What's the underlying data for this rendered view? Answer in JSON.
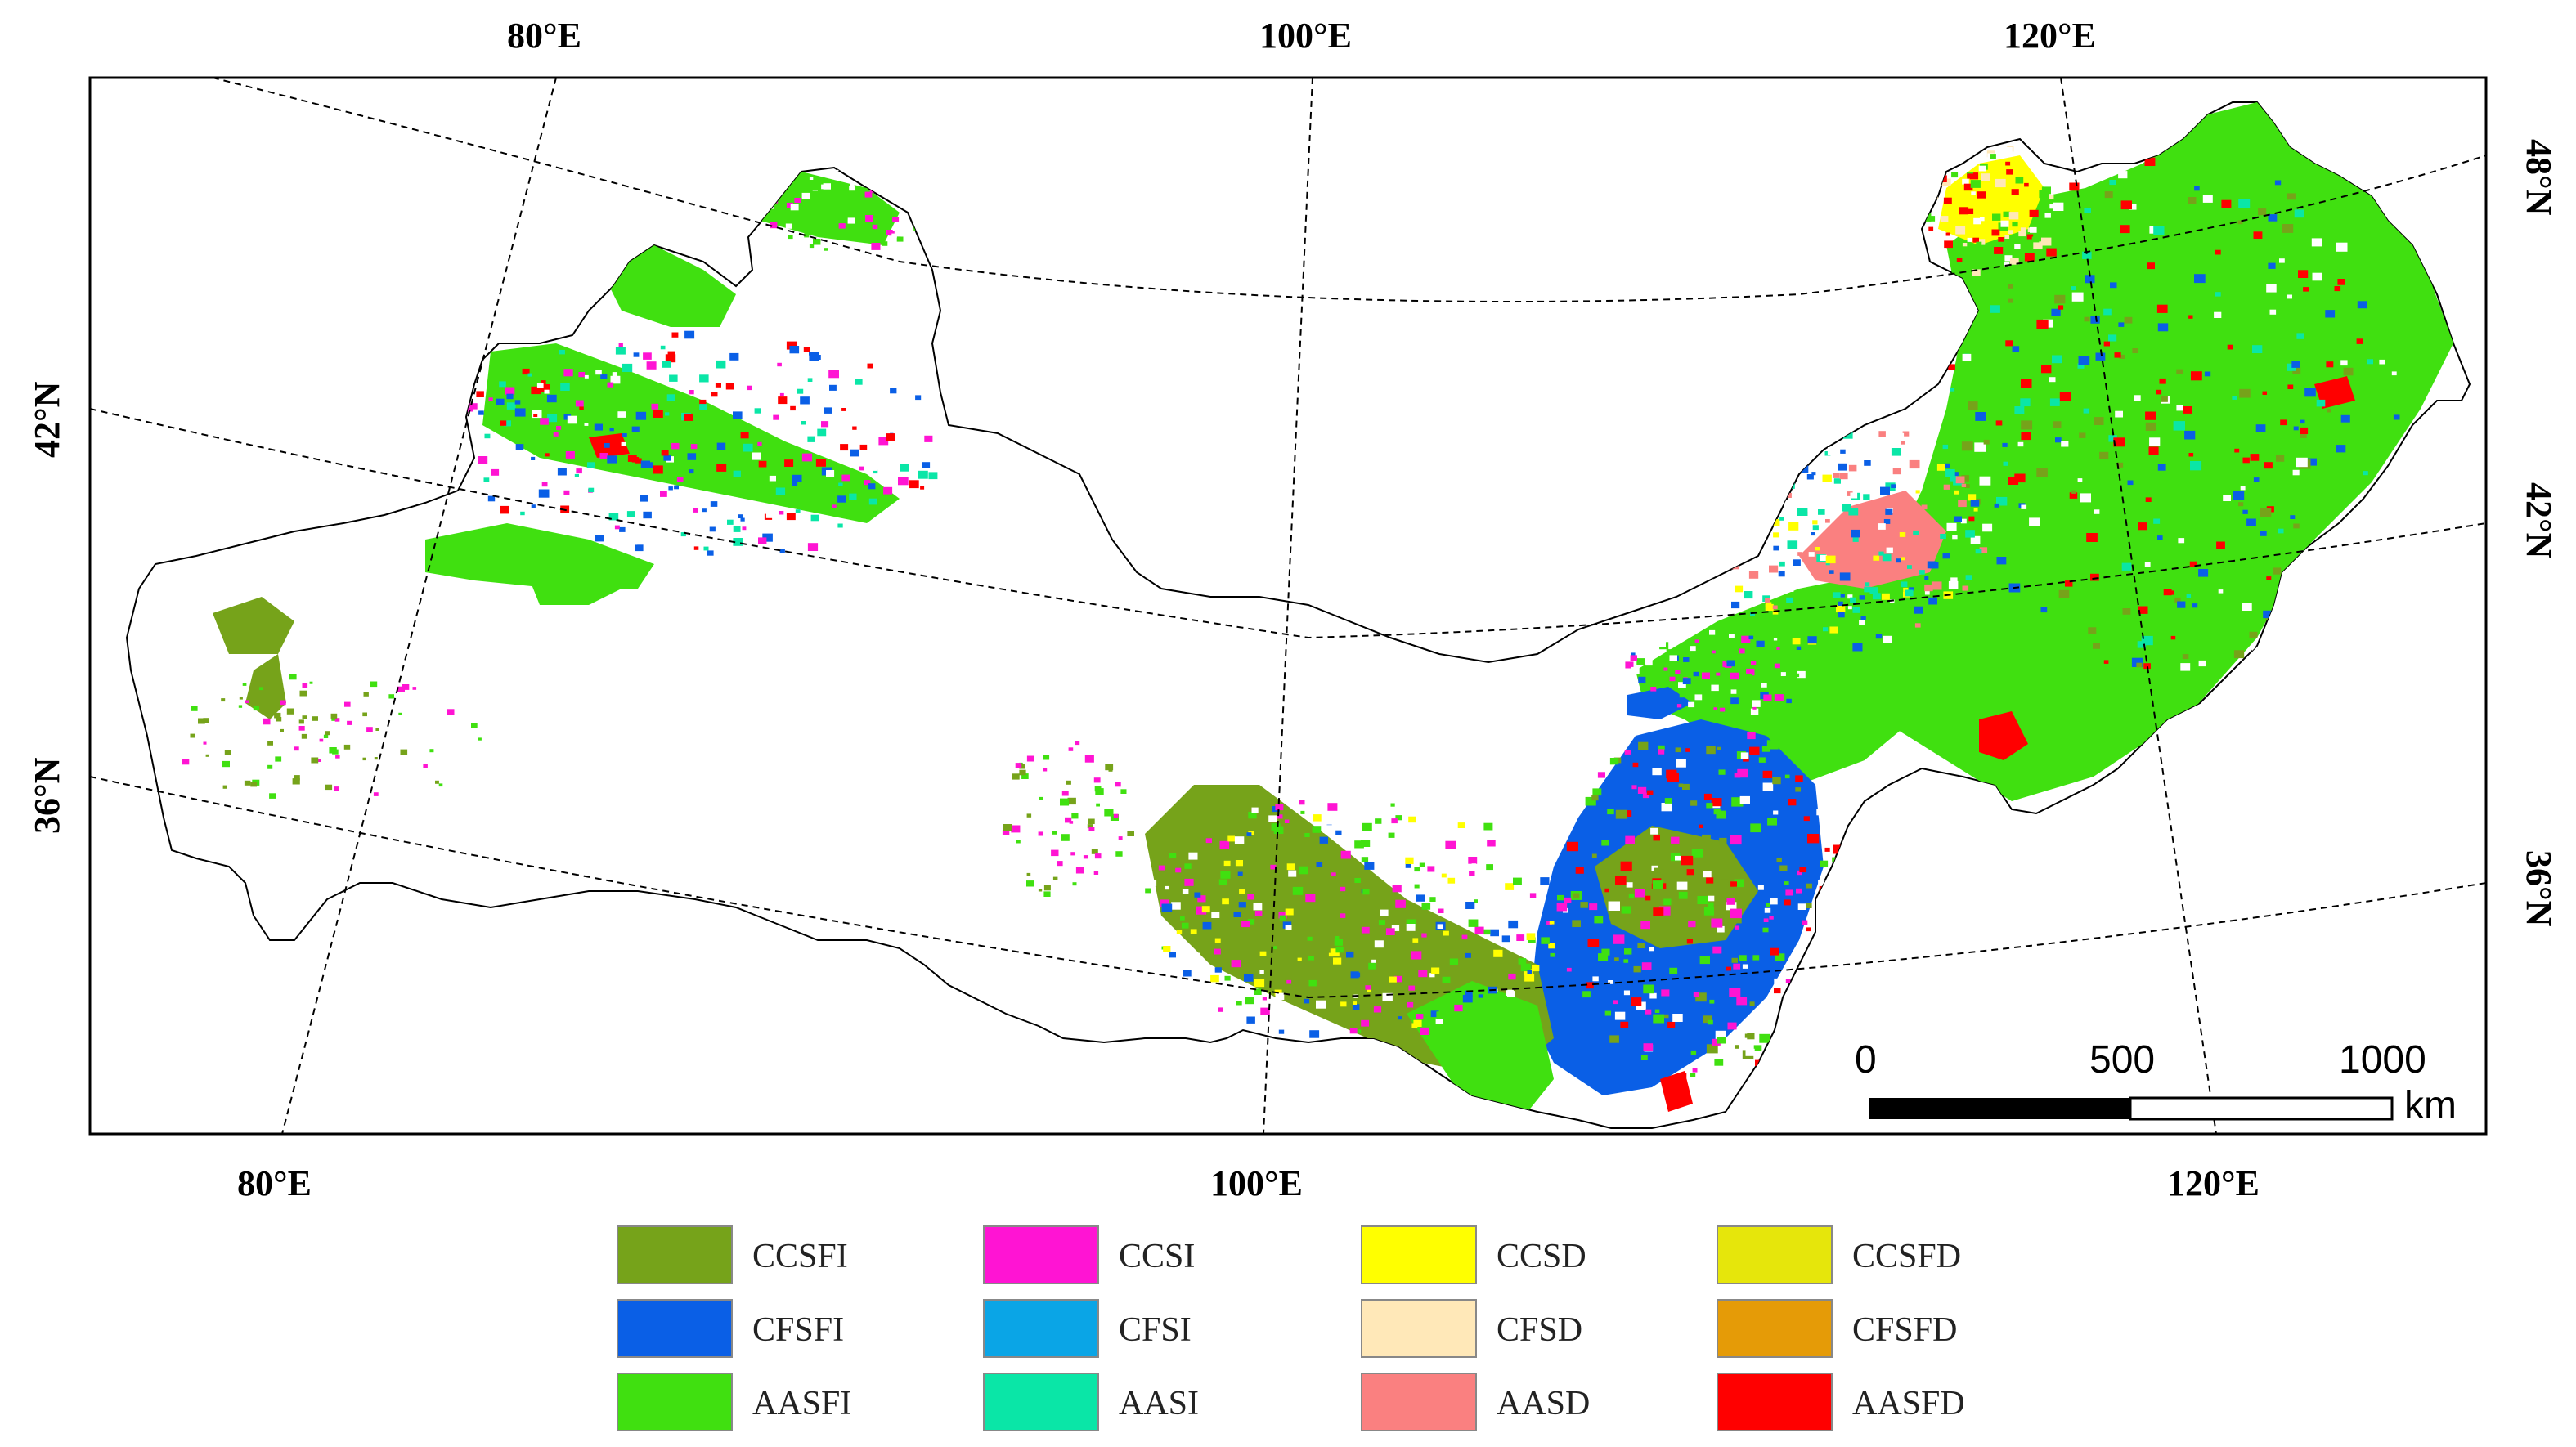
{
  "map": {
    "graticule_labels": {
      "top": [
        "80°E",
        "100°E",
        "120°E"
      ],
      "bottom": [
        "80°E",
        "100°E",
        "120°E"
      ],
      "left": [
        "42°N",
        "36°N"
      ],
      "right": [
        "48°N",
        "42°N",
        "36°N"
      ]
    },
    "scale_bar": {
      "ticks": [
        "0",
        "500",
        "1000"
      ],
      "unit": "km"
    },
    "legend": [
      {
        "label": "CCSFI",
        "color": "#76a31a"
      },
      {
        "label": "CCSI",
        "color": "#ff14d3"
      },
      {
        "label": "CCSD",
        "color": "#ffff00"
      },
      {
        "label": "CCSFD",
        "color": "#e6e60b"
      },
      {
        "label": "CFSFI",
        "color": "#0a5fe6"
      },
      {
        "label": "CFSI",
        "color": "#0aa5e6"
      },
      {
        "label": "CFSD",
        "color": "#ffe8b8"
      },
      {
        "label": "CFSFD",
        "color": "#e59b07"
      },
      {
        "label": "AASFI",
        "color": "#40e010"
      },
      {
        "label": "AASI",
        "color": "#0ae6a7"
      },
      {
        "label": "AASD",
        "color": "#fa8080"
      },
      {
        "label": "AASFD",
        "color": "#ff0000"
      }
    ]
  }
}
